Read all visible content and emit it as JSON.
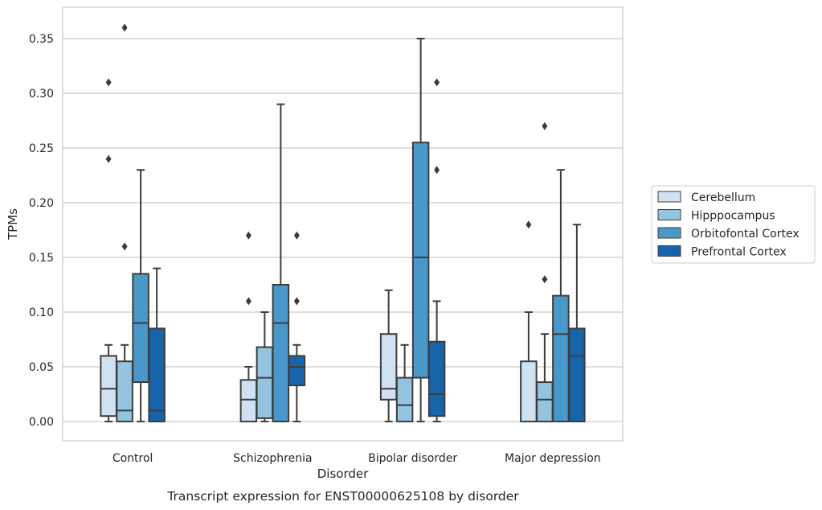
{
  "chart_data": {
    "type": "boxplot",
    "xlabel": "Disorder",
    "ylabel": "TPMs",
    "caption": "Transcript expression for ENST00000625108 by disorder",
    "ylim": [
      -0.018,
      0.378
    ],
    "yticks": [
      0.0,
      0.05,
      0.1,
      0.15,
      0.2,
      0.25,
      0.3,
      0.35
    ],
    "ytick_labels": [
      "0.00",
      "0.05",
      "0.10",
      "0.15",
      "0.20",
      "0.25",
      "0.30",
      "0.35"
    ],
    "grid": "horizontal",
    "legend_placement": "right",
    "categories": [
      "Control",
      "Schizophrenia",
      "Bipolar disorder",
      "Major depression"
    ],
    "series": [
      {
        "name": "Cerebellum",
        "color": "#d0e1f2",
        "boxes": [
          {
            "whislo": 0.0,
            "q1": 0.005,
            "med": 0.03,
            "q3": 0.06,
            "whishi": 0.07,
            "fliers": [
              0.24,
              0.31
            ]
          },
          {
            "whislo": 0.0,
            "q1": 0.0,
            "med": 0.02,
            "q3": 0.038,
            "whishi": 0.05,
            "fliers": [
              0.11,
              0.17
            ]
          },
          {
            "whislo": 0.0,
            "q1": 0.02,
            "med": 0.03,
            "q3": 0.08,
            "whishi": 0.12,
            "fliers": []
          },
          {
            "whislo": 0.0,
            "q1": 0.0,
            "med": 0.0,
            "q3": 0.055,
            "whishi": 0.1,
            "fliers": [
              0.18
            ]
          }
        ]
      },
      {
        "name": "Hipppocampus",
        "color": "#94c4df",
        "boxes": [
          {
            "whislo": 0.0,
            "q1": 0.0,
            "med": 0.01,
            "q3": 0.055,
            "whishi": 0.07,
            "fliers": [
              0.16,
              0.36
            ]
          },
          {
            "whislo": 0.0,
            "q1": 0.003,
            "med": 0.04,
            "q3": 0.068,
            "whishi": 0.1,
            "fliers": []
          },
          {
            "whislo": 0.0,
            "q1": 0.0,
            "med": 0.015,
            "q3": 0.04,
            "whishi": 0.07,
            "fliers": []
          },
          {
            "whislo": 0.0,
            "q1": 0.0,
            "med": 0.02,
            "q3": 0.036,
            "whishi": 0.08,
            "fliers": [
              0.13,
              0.27
            ]
          }
        ]
      },
      {
        "name": "Orbitofontal Cortex",
        "color": "#4a98c9",
        "boxes": [
          {
            "whislo": 0.0,
            "q1": 0.036,
            "med": 0.09,
            "q3": 0.135,
            "whishi": 0.23,
            "fliers": []
          },
          {
            "whislo": 0.0,
            "q1": 0.0,
            "med": 0.09,
            "q3": 0.125,
            "whishi": 0.29,
            "fliers": []
          },
          {
            "whislo": 0.0,
            "q1": 0.04,
            "med": 0.15,
            "q3": 0.255,
            "whishi": 0.35,
            "fliers": []
          },
          {
            "whislo": 0.0,
            "q1": 0.0,
            "med": 0.08,
            "q3": 0.115,
            "whishi": 0.23,
            "fliers": []
          }
        ]
      },
      {
        "name": "Prefrontal Cortex",
        "color": "#1764ab",
        "boxes": [
          {
            "whislo": 0.0,
            "q1": 0.0,
            "med": 0.01,
            "q3": 0.085,
            "whishi": 0.14,
            "fliers": []
          },
          {
            "whislo": 0.0,
            "q1": 0.033,
            "med": 0.05,
            "q3": 0.06,
            "whishi": 0.07,
            "fliers": [
              0.11,
              0.17
            ]
          },
          {
            "whislo": 0.0,
            "q1": 0.005,
            "med": 0.025,
            "q3": 0.073,
            "whishi": 0.11,
            "fliers": [
              0.23,
              0.31
            ]
          },
          {
            "whislo": 0.0,
            "q1": 0.0,
            "med": 0.06,
            "q3": 0.085,
            "whishi": 0.18,
            "fliers": []
          }
        ]
      }
    ]
  }
}
